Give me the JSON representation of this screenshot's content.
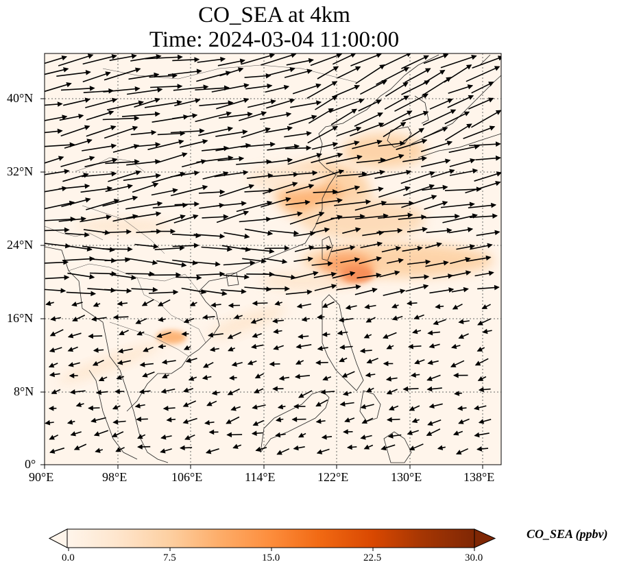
{
  "title": {
    "line1": "CO_SEA at 4km",
    "line2": "Time: 2024-03-04 11:00:00"
  },
  "map": {
    "lon_range": [
      90,
      140
    ],
    "lat_range": [
      0,
      45
    ],
    "x_ticks": [
      "90°E",
      "98°E",
      "106°E",
      "114°E",
      "122°E",
      "130°E",
      "138°E"
    ],
    "y_ticks": [
      "0°",
      "8°N",
      "16°N",
      "24°N",
      "32°N",
      "40°N"
    ],
    "gridlines": true,
    "background_color": "#fff5eb"
  },
  "colorbar": {
    "label": "CO_SEA (ppbv)",
    "tick_labels": [
      "0.0",
      "7.5",
      "15.0",
      "22.5",
      "30.0"
    ],
    "range": [
      0,
      30
    ],
    "colors": [
      "#fff5eb",
      "#fee6ce",
      "#fdd0a2",
      "#fdae6b",
      "#fd8d3c",
      "#f16913",
      "#d94801",
      "#a63603",
      "#7f2704"
    ]
  }
}
